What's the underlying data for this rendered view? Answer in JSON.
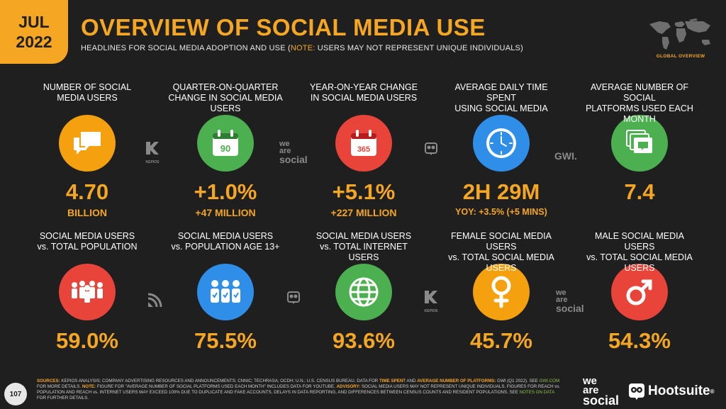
{
  "header": {
    "date_month": "JUL",
    "date_year": "2022",
    "title": "OVERVIEW OF SOCIAL MEDIA USE",
    "subtitle_main": "HEADLINES FOR SOCIAL MEDIA ADOPTION AND USE (",
    "subtitle_note": "NOTE:",
    "subtitle_rest": " USERS MAY NOT REPRESENT UNIQUE INDIVIDUALS)",
    "map_label": "GLOBAL OVERVIEW"
  },
  "stats_top": [
    {
      "label_line1": "NUMBER OF SOCIAL",
      "label_line2": "MEDIA USERS",
      "value": "4.70",
      "sub": "BILLION",
      "icon": "chat-bubbles-icon",
      "color": "#f5a00f"
    },
    {
      "label_line1": "QUARTER-ON-QUARTER",
      "label_line2": "CHANGE IN SOCIAL MEDIA USERS",
      "value": "+1.0%",
      "sub": "+47 MILLION",
      "icon": "calendar-90-icon",
      "icon_text": "90",
      "color": "#4caf50"
    },
    {
      "label_line1": "YEAR-ON-YEAR CHANGE",
      "label_line2": "IN SOCIAL MEDIA USERS",
      "value": "+5.1%",
      "sub": "+227 MILLION",
      "icon": "calendar-365-icon",
      "icon_text": "365",
      "color": "#e8443a"
    },
    {
      "label_line1": "AVERAGE DAILY TIME SPENT",
      "label_line2": "USING SOCIAL MEDIA",
      "value": "2H 29M",
      "sub": "YOY: +3.5% (+5 MINS)",
      "icon": "clock-icon",
      "color": "#2f8fe8"
    },
    {
      "label_line1": "AVERAGE NUMBER OF SOCIAL",
      "label_line2": "PLATFORMS USED EACH MONTH",
      "value": "7.4",
      "sub": "",
      "icon": "stacked-windows-icon",
      "color": "#4caf50"
    }
  ],
  "stats_bottom": [
    {
      "label_line1": "SOCIAL MEDIA USERS",
      "label_line2": "vs. TOTAL POPULATION",
      "value": "59.0%",
      "icon": "crowd-icon",
      "color": "#e8443a"
    },
    {
      "label_line1": "SOCIAL MEDIA USERS",
      "label_line2": "vs. POPULATION AGE 13+",
      "value": "75.5%",
      "icon": "people-check-icon",
      "color": "#2f8fe8"
    },
    {
      "label_line1": "SOCIAL MEDIA USERS",
      "label_line2": "vs. TOTAL INTERNET USERS",
      "value": "93.6%",
      "icon": "globe-icon",
      "color": "#4caf50"
    },
    {
      "label_line1": "FEMALE SOCIAL MEDIA USERS",
      "label_line2": "vs. TOTAL SOCIAL MEDIA USERS",
      "value": "45.7%",
      "icon": "female-symbol-icon",
      "color": "#f5a00f"
    },
    {
      "label_line1": "MALE SOCIAL MEDIA USERS",
      "label_line2": "vs. TOTAL SOCIAL MEDIA USERS",
      "value": "54.3%",
      "icon": "male-symbol-icon",
      "color": "#e8443a"
    }
  ],
  "source_logos": {
    "kepios": "KEPIOS",
    "we": "we",
    "are": "are",
    "social": "social",
    "gwi": "GWI."
  },
  "footer": {
    "page_number": "107",
    "s1": "SOURCES:",
    "s2": " KEPIOS ANALYSIS; COMPANY ADVERTISING RESOURCES AND ANNOUNCEMENTS; CNNIC; TECHRASA; OCDH; U.N.; U.S. CENSUS BUREAU. DATA FOR ",
    "s3": "TIME SPENT",
    "s4": " AND ",
    "s5": "AVERAGE NUMBER OF PLATFORMS:",
    "s6": " GWI (Q1 2022). SEE ",
    "s7": "GWI.COM",
    "s8": " FOR MORE DETAILS. ",
    "s9": "NOTE:",
    "s10": " FIGURE FOR \"AVERAGE NUMBER OF SOCIAL PLATFORMS USED EACH MONTH\" INCLUDES DATA FOR YOUTUBE. ",
    "s11": "ADVISORY:",
    "s12": " SOCIAL MEDIA USERS MAY NOT REPRESENT UNIQUE INDIVIDUALS. FIGURES FOR REACH vs. POPULATION AND REACH vs. INTERNET USERS MAY EXCEED 100% DUE TO DUPLICATE AND FAKE ACCOUNTS, DELAYS IN DATA REPORTING, AND DIFFERENCES BETWEEN CENSUS COUNTS AND RESIDENT POPULATIONS. SEE ",
    "s13": "NOTES ON DATA",
    "s14": " FOR FURTHER DETAILS."
  },
  "brand": {
    "ws_we": "we",
    "ws_are": "are",
    "ws_social": "social",
    "hootsuite": "Hootsuite",
    "hootsuite_mark": "®"
  }
}
